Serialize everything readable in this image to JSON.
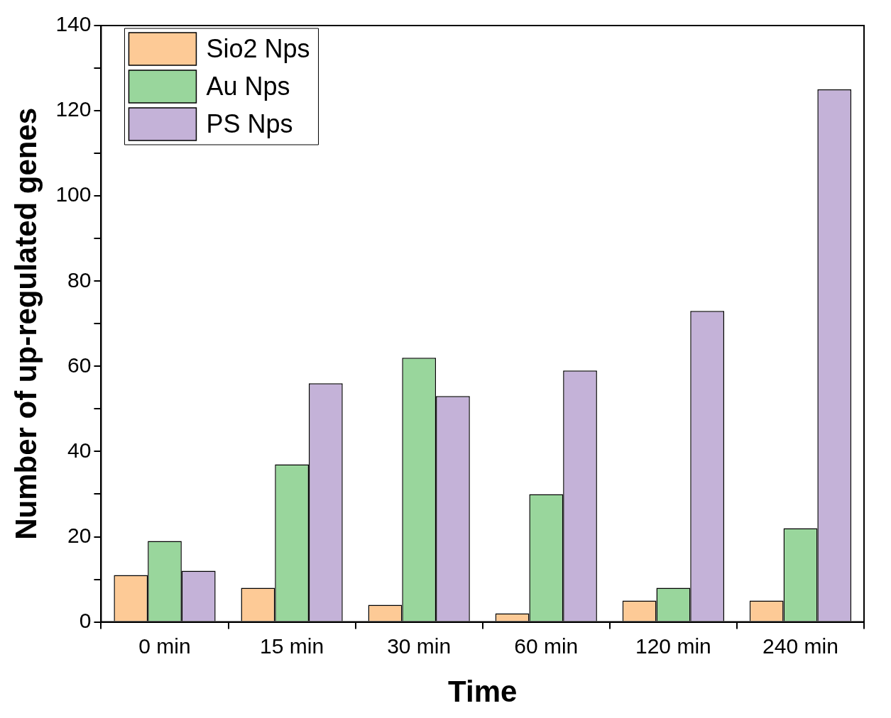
{
  "chart_data": {
    "type": "bar",
    "xlabel": "Time",
    "ylabel": "Number of up-regulated genes",
    "categories": [
      "0 min",
      "15 min",
      "30 min",
      "60 min",
      "120 min",
      "240 min"
    ],
    "series": [
      {
        "name": "Sio2 Nps",
        "color": "#fdca96",
        "values": [
          11,
          8,
          4,
          2,
          5,
          5
        ]
      },
      {
        "name": "Au Nps",
        "color": "#99d69c",
        "values": [
          19,
          37,
          62,
          30,
          8,
          22
        ]
      },
      {
        "name": "PS Nps",
        "color": "#c4b2d8",
        "values": [
          12,
          56,
          53,
          59,
          73,
          125
        ]
      }
    ],
    "ylim": [
      0,
      140
    ],
    "yticks": [
      0,
      {
        "value": 10,
        "label": null
      },
      20,
      {
        "value": 30,
        "label": null
      },
      40,
      {
        "value": 50,
        "label": null
      },
      60,
      {
        "value": 70,
        "label": null
      },
      80,
      {
        "value": 90,
        "label": null
      },
      100,
      {
        "value": 110,
        "label": null
      },
      120,
      {
        "value": 130,
        "label": null
      },
      140
    ],
    "grid": false,
    "legend": "top left"
  }
}
